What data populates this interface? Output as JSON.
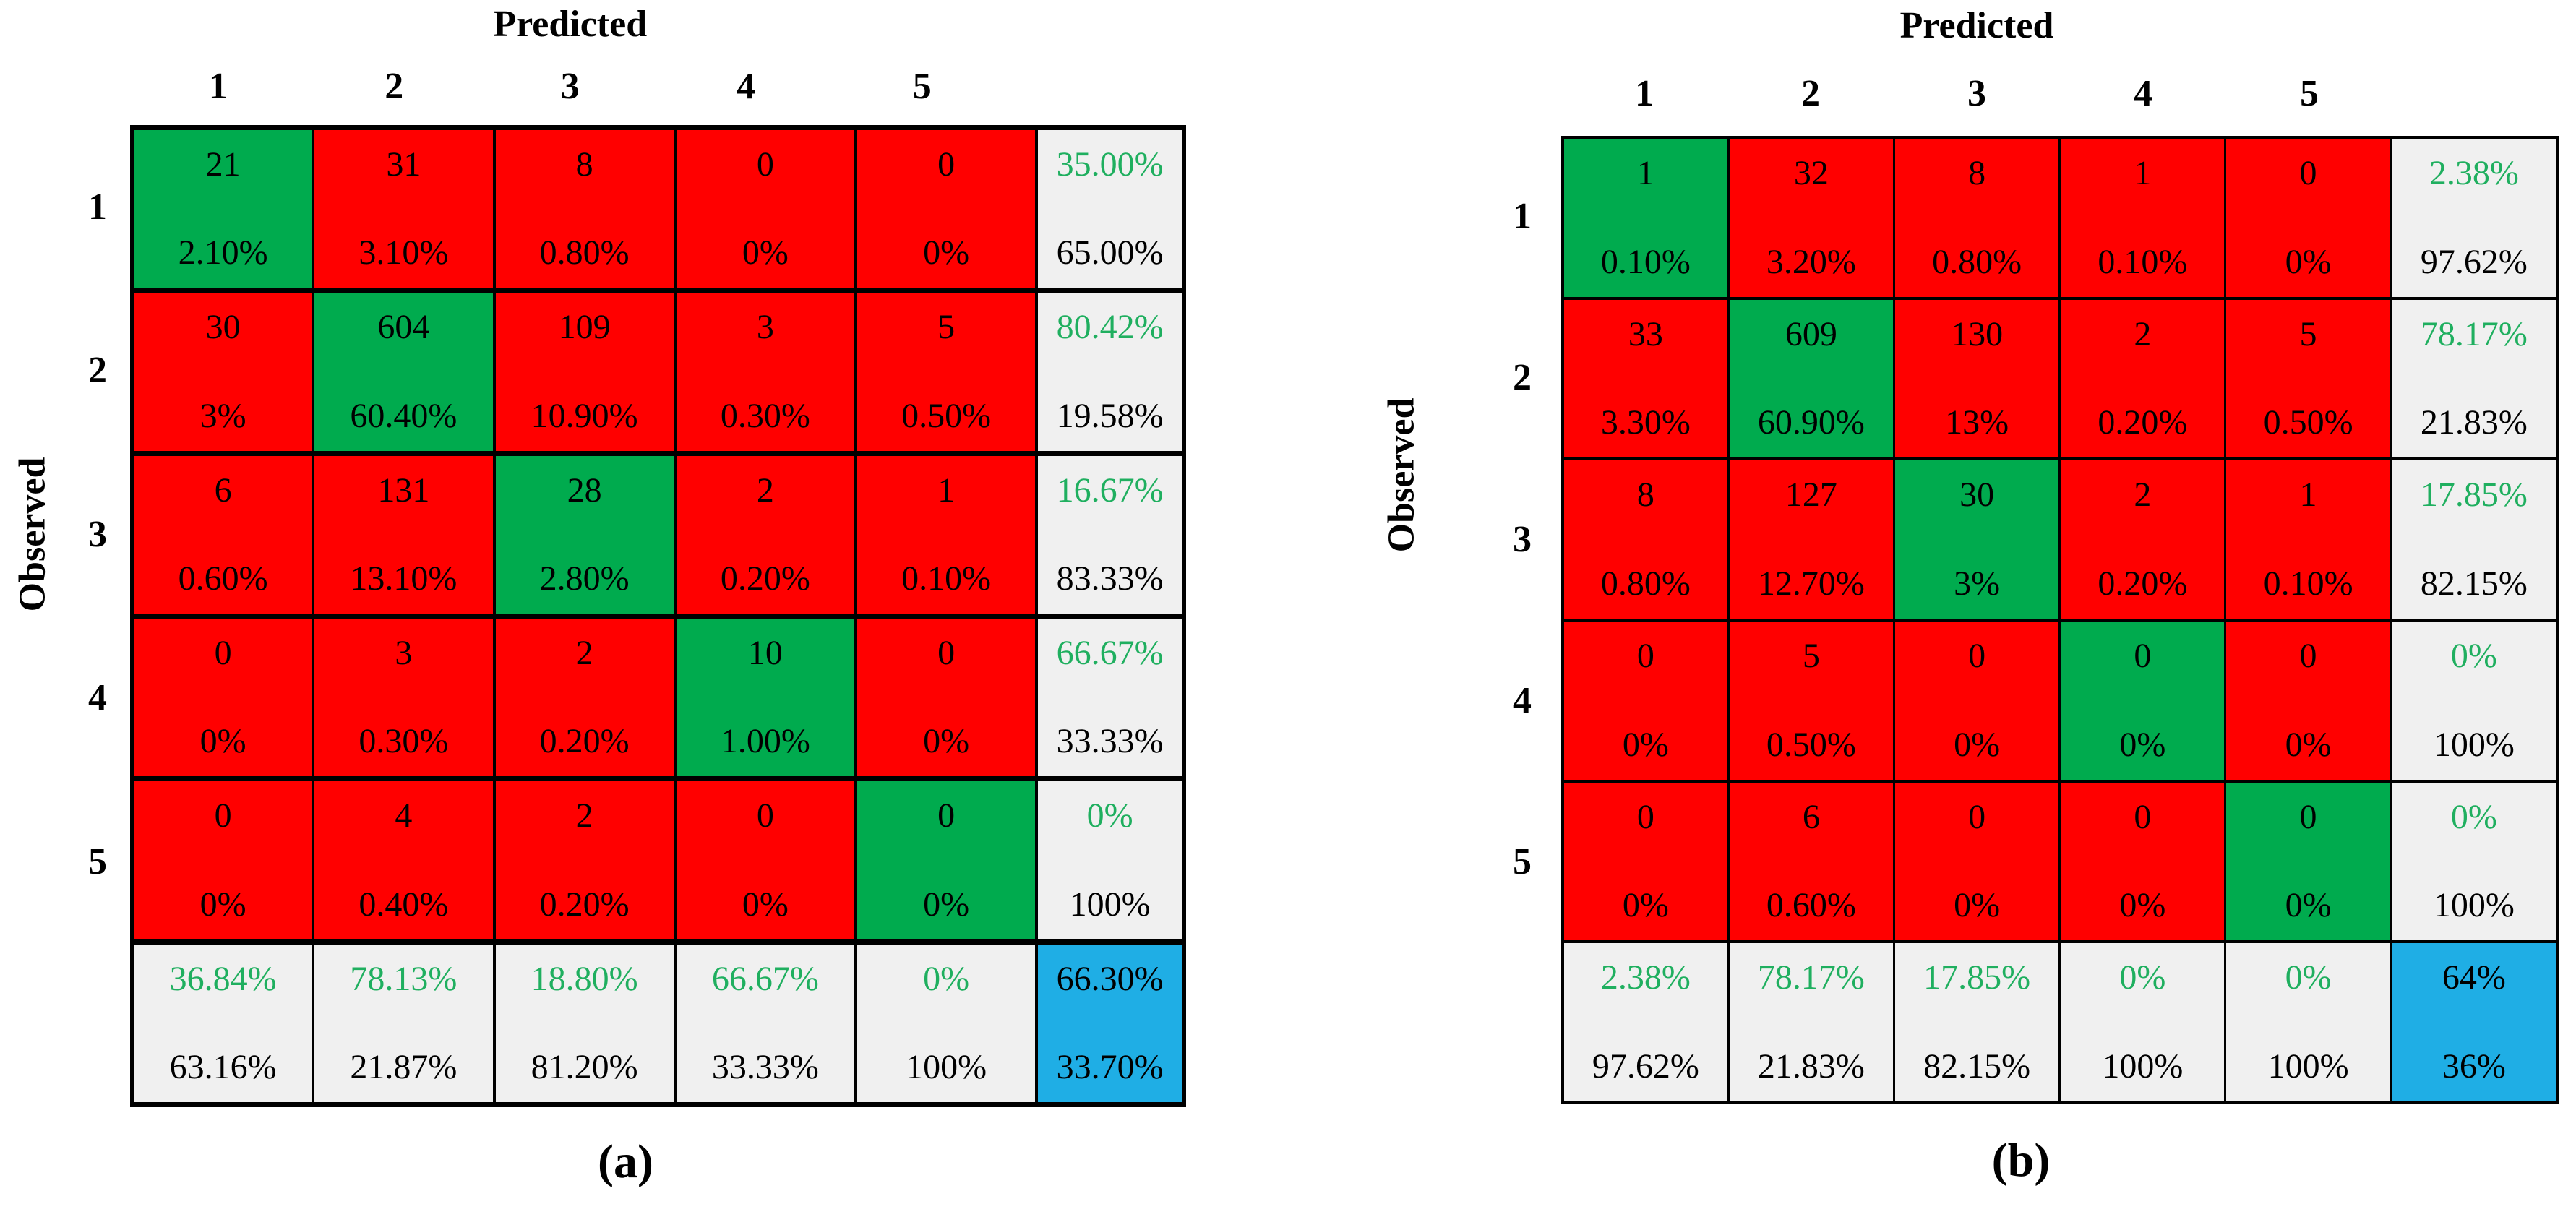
{
  "colors": {
    "red": "#FF0000",
    "green": "#00AB4E",
    "green_text": "#1FAF5F",
    "blue": "#1FAEE5",
    "summary_bg": "#F0F0F0",
    "border": "#000000"
  },
  "panels": [
    {
      "id": "a",
      "caption": "(a)",
      "predicted_label": "Predicted",
      "observed_label": "Observed",
      "col_labels": [
        "1",
        "2",
        "3",
        "4",
        "5"
      ],
      "row_labels": [
        "1",
        "2",
        "3",
        "4",
        "5"
      ],
      "rows": [
        {
          "cells": [
            {
              "count": "21",
              "pct": "2.10%",
              "kind": "diag"
            },
            {
              "count": "31",
              "pct": "3.10%",
              "kind": "off"
            },
            {
              "count": "8",
              "pct": "0.80%",
              "kind": "off"
            },
            {
              "count": "0",
              "pct": "0%",
              "kind": "off"
            },
            {
              "count": "0",
              "pct": "0%",
              "kind": "off"
            },
            {
              "count": "35.00%",
              "pct": "65.00%",
              "kind": "rowsum"
            }
          ]
        },
        {
          "cells": [
            {
              "count": "30",
              "pct": "3%",
              "kind": "off"
            },
            {
              "count": "604",
              "pct": "60.40%",
              "kind": "diag"
            },
            {
              "count": "109",
              "pct": "10.90%",
              "kind": "off"
            },
            {
              "count": "3",
              "pct": "0.30%",
              "kind": "off"
            },
            {
              "count": "5",
              "pct": "0.50%",
              "kind": "off"
            },
            {
              "count": "80.42%",
              "pct": "19.58%",
              "kind": "rowsum"
            }
          ]
        },
        {
          "cells": [
            {
              "count": "6",
              "pct": "0.60%",
              "kind": "off"
            },
            {
              "count": "131",
              "pct": "13.10%",
              "kind": "off"
            },
            {
              "count": "28",
              "pct": "2.80%",
              "kind": "diag"
            },
            {
              "count": "2",
              "pct": "0.20%",
              "kind": "off"
            },
            {
              "count": "1",
              "pct": "0.10%",
              "kind": "off"
            },
            {
              "count": "16.67%",
              "pct": "83.33%",
              "kind": "rowsum"
            }
          ]
        },
        {
          "cells": [
            {
              "count": "0",
              "pct": "0%",
              "kind": "off"
            },
            {
              "count": "3",
              "pct": "0.30%",
              "kind": "off"
            },
            {
              "count": "2",
              "pct": "0.20%",
              "kind": "off"
            },
            {
              "count": "10",
              "pct": "1.00%",
              "kind": "diag"
            },
            {
              "count": "0",
              "pct": "0%",
              "kind": "off"
            },
            {
              "count": "66.67%",
              "pct": "33.33%",
              "kind": "rowsum"
            }
          ]
        },
        {
          "cells": [
            {
              "count": "0",
              "pct": "0%",
              "kind": "off"
            },
            {
              "count": "4",
              "pct": "0.40%",
              "kind": "off"
            },
            {
              "count": "2",
              "pct": "0.20%",
              "kind": "off"
            },
            {
              "count": "0",
              "pct": "0%",
              "kind": "off"
            },
            {
              "count": "0",
              "pct": "0%",
              "kind": "diag"
            },
            {
              "count": "0%",
              "pct": "100%",
              "kind": "rowsum"
            }
          ]
        },
        {
          "cells": [
            {
              "count": "36.84%",
              "pct": "63.16%",
              "kind": "colsum"
            },
            {
              "count": "78.13%",
              "pct": "21.87%",
              "kind": "colsum"
            },
            {
              "count": "18.80%",
              "pct": "81.20%",
              "kind": "colsum"
            },
            {
              "count": "66.67%",
              "pct": "33.33%",
              "kind": "colsum"
            },
            {
              "count": "0%",
              "pct": "100%",
              "kind": "colsum"
            },
            {
              "count": "66.30%",
              "pct": "33.70%",
              "kind": "total"
            }
          ]
        }
      ]
    },
    {
      "id": "b",
      "caption": "(b)",
      "predicted_label": "Predicted",
      "observed_label": "Observed",
      "col_labels": [
        "1",
        "2",
        "3",
        "4",
        "5"
      ],
      "row_labels": [
        "1",
        "2",
        "3",
        "4",
        "5"
      ],
      "rows": [
        {
          "cells": [
            {
              "count": "1",
              "pct": "0.10%",
              "kind": "diag"
            },
            {
              "count": "32",
              "pct": "3.20%",
              "kind": "off"
            },
            {
              "count": "8",
              "pct": "0.80%",
              "kind": "off"
            },
            {
              "count": "1",
              "pct": "0.10%",
              "kind": "off"
            },
            {
              "count": "0",
              "pct": "0%",
              "kind": "off"
            },
            {
              "count": "2.38%",
              "pct": "97.62%",
              "kind": "rowsum"
            }
          ]
        },
        {
          "cells": [
            {
              "count": "33",
              "pct": "3.30%",
              "kind": "off"
            },
            {
              "count": "609",
              "pct": "60.90%",
              "kind": "diag"
            },
            {
              "count": "130",
              "pct": "13%",
              "kind": "off"
            },
            {
              "count": "2",
              "pct": "0.20%",
              "kind": "off"
            },
            {
              "count": "5",
              "pct": "0.50%",
              "kind": "off"
            },
            {
              "count": "78.17%",
              "pct": "21.83%",
              "kind": "rowsum"
            }
          ]
        },
        {
          "cells": [
            {
              "count": "8",
              "pct": "0.80%",
              "kind": "off"
            },
            {
              "count": "127",
              "pct": "12.70%",
              "kind": "off"
            },
            {
              "count": "30",
              "pct": "3%",
              "kind": "diag"
            },
            {
              "count": "2",
              "pct": "0.20%",
              "kind": "off"
            },
            {
              "count": "1",
              "pct": "0.10%",
              "kind": "off"
            },
            {
              "count": "17.85%",
              "pct": "82.15%",
              "kind": "rowsum"
            }
          ]
        },
        {
          "cells": [
            {
              "count": "0",
              "pct": "0%",
              "kind": "off"
            },
            {
              "count": "5",
              "pct": "0.50%",
              "kind": "off"
            },
            {
              "count": "0",
              "pct": "0%",
              "kind": "off"
            },
            {
              "count": "0",
              "pct": "0%",
              "kind": "diag"
            },
            {
              "count": "0",
              "pct": "0%",
              "kind": "off"
            },
            {
              "count": "0%",
              "pct": "100%",
              "kind": "rowsum"
            }
          ]
        },
        {
          "cells": [
            {
              "count": "0",
              "pct": "0%",
              "kind": "off"
            },
            {
              "count": "6",
              "pct": "0.60%",
              "kind": "off"
            },
            {
              "count": "0",
              "pct": "0%",
              "kind": "off"
            },
            {
              "count": "0",
              "pct": "0%",
              "kind": "off"
            },
            {
              "count": "0",
              "pct": "0%",
              "kind": "diag"
            },
            {
              "count": "0%",
              "pct": "100%",
              "kind": "rowsum"
            }
          ]
        },
        {
          "cells": [
            {
              "count": "2.38%",
              "pct": "97.62%",
              "kind": "colsum"
            },
            {
              "count": "78.17%",
              "pct": "21.83%",
              "kind": "colsum"
            },
            {
              "count": "17.85%",
              "pct": "82.15%",
              "kind": "colsum"
            },
            {
              "count": "0%",
              "pct": "100%",
              "kind": "colsum"
            },
            {
              "count": "0%",
              "pct": "100%",
              "kind": "colsum"
            },
            {
              "count": "64%",
              "pct": "36%",
              "kind": "total"
            }
          ]
        }
      ]
    }
  ],
  "chart_data": [
    {
      "type": "heatmap",
      "title": "(a)",
      "xlabel": "Predicted",
      "ylabel": "Observed",
      "classes": [
        "1",
        "2",
        "3",
        "4",
        "5"
      ],
      "counts": [
        [
          21,
          31,
          8,
          0,
          0
        ],
        [
          30,
          604,
          109,
          3,
          5
        ],
        [
          6,
          131,
          28,
          2,
          1
        ],
        [
          0,
          3,
          2,
          10,
          0
        ],
        [
          0,
          4,
          2,
          0,
          0
        ]
      ],
      "percent_of_total": [
        [
          "2.10%",
          "3.10%",
          "0.80%",
          "0%",
          "0%"
        ],
        [
          "3%",
          "60.40%",
          "10.90%",
          "0.30%",
          "0.50%"
        ],
        [
          "0.60%",
          "13.10%",
          "2.80%",
          "0.20%",
          "0.10%"
        ],
        [
          "0%",
          "0.30%",
          "0.20%",
          "1.00%",
          "0%"
        ],
        [
          "0%",
          "0.40%",
          "0.20%",
          "0%",
          "0%"
        ]
      ],
      "row_summary_correct": [
        "35.00%",
        "80.42%",
        "16.67%",
        "66.67%",
        "0%"
      ],
      "row_summary_incorrect": [
        "65.00%",
        "19.58%",
        "83.33%",
        "33.33%",
        "100%"
      ],
      "col_summary_correct": [
        "36.84%",
        "78.13%",
        "18.80%",
        "66.67%",
        "0%"
      ],
      "col_summary_incorrect": [
        "63.16%",
        "21.87%",
        "81.20%",
        "33.33%",
        "100%"
      ],
      "overall_correct": "66.30%",
      "overall_incorrect": "33.70%"
    },
    {
      "type": "heatmap",
      "title": "(b)",
      "xlabel": "Predicted",
      "ylabel": "Observed",
      "classes": [
        "1",
        "2",
        "3",
        "4",
        "5"
      ],
      "counts": [
        [
          1,
          32,
          8,
          1,
          0
        ],
        [
          33,
          609,
          130,
          2,
          5
        ],
        [
          8,
          127,
          30,
          2,
          1
        ],
        [
          0,
          5,
          0,
          0,
          0
        ],
        [
          0,
          6,
          0,
          0,
          0
        ]
      ],
      "percent_of_total": [
        [
          "0.10%",
          "3.20%",
          "0.80%",
          "0.10%",
          "0%"
        ],
        [
          "3.30%",
          "60.90%",
          "13%",
          "0.20%",
          "0.50%"
        ],
        [
          "0.80%",
          "12.70%",
          "3%",
          "0.20%",
          "0.10%"
        ],
        [
          "0%",
          "0.50%",
          "0%",
          "0%",
          "0%"
        ],
        [
          "0%",
          "0.60%",
          "0%",
          "0%",
          "0%"
        ]
      ],
      "row_summary_correct": [
        "2.38%",
        "78.17%",
        "17.85%",
        "0%",
        "0%"
      ],
      "row_summary_incorrect": [
        "97.62%",
        "21.83%",
        "82.15%",
        "100%",
        "100%"
      ],
      "col_summary_correct": [
        "2.38%",
        "78.17%",
        "17.85%",
        "0%",
        "0%"
      ],
      "col_summary_incorrect": [
        "97.62%",
        "21.83%",
        "82.15%",
        "100%",
        "100%"
      ],
      "overall_correct": "64%",
      "overall_incorrect": "36%"
    }
  ]
}
